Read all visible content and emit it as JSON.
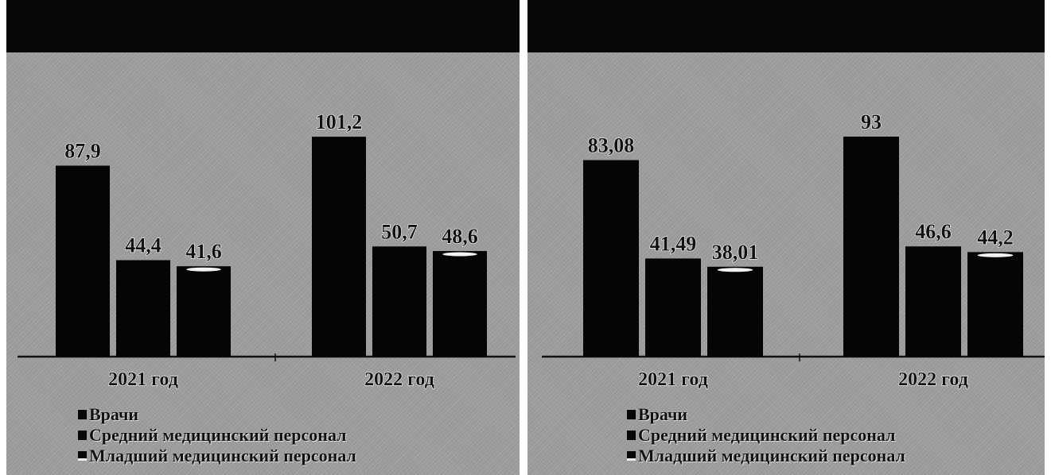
{
  "colors": {
    "bar": "#050505",
    "bar_highlight": "#f2f2f2",
    "axis": "#111111",
    "header": "#060606",
    "panel_bg": "#9e9e9e"
  },
  "chart_data": [
    {
      "type": "bar",
      "title": "",
      "categories": [
        "2021 год",
        "2022 год"
      ],
      "series": [
        {
          "name": "Врачи",
          "values": [
            87.9,
            101.2
          ],
          "labels": [
            "87,9",
            "101,2"
          ]
        },
        {
          "name": "Средний медицинский персонал",
          "values": [
            44.4,
            50.7
          ],
          "labels": [
            "44,4",
            "50,7"
          ]
        },
        {
          "name": "Младший медицинский персонал",
          "values": [
            41.6,
            48.6
          ],
          "labels": [
            "41,6",
            "48,6"
          ]
        }
      ],
      "ylim": [
        0,
        140
      ],
      "grid": false,
      "legend_position": "bottom-left"
    },
    {
      "type": "bar",
      "title": "",
      "categories": [
        "2021 год",
        "2022 год"
      ],
      "series": [
        {
          "name": "Врачи",
          "values": [
            83.08,
            93
          ],
          "labels": [
            "83,08",
            "93"
          ]
        },
        {
          "name": "Средний медицинский персонал",
          "values": [
            41.49,
            46.6
          ],
          "labels": [
            "41,49",
            "46,6"
          ]
        },
        {
          "name": "Младший медицинский персонал",
          "values": [
            38.01,
            44.2
          ],
          "labels": [
            "38,01",
            "44,2"
          ]
        }
      ],
      "ylim": [
        0,
        128.6
      ],
      "grid": false,
      "legend_position": "bottom-left"
    }
  ]
}
